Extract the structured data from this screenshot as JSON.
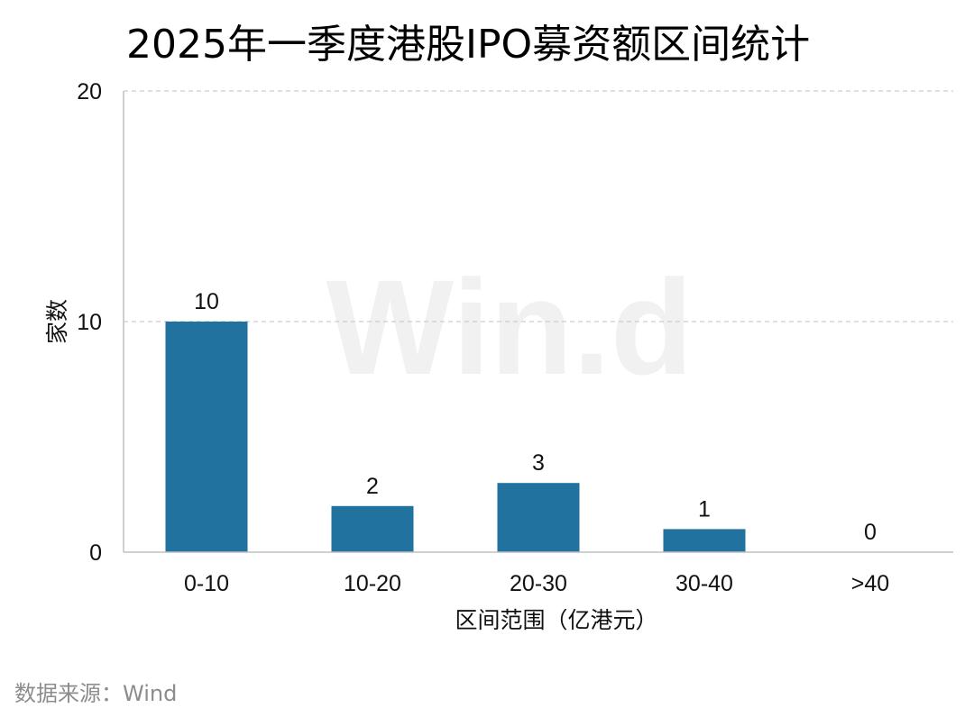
{
  "title": "2025年一季度港股IPO募资额区间统计",
  "source": "数据来源：Wind",
  "watermark": "Win.d",
  "colors": {
    "bar": "#2272a0",
    "grid": "#cccccc",
    "axis": "#bfbfbf",
    "watermark": "#f1f1f1",
    "text": "#111111",
    "source": "#8c8c8c"
  },
  "chart_data": {
    "type": "bar",
    "categories": [
      "0-10",
      "10-20",
      "20-30",
      "30-40",
      ">40"
    ],
    "values": [
      10,
      2,
      3,
      1,
      0
    ],
    "data_labels": [
      "10",
      "2",
      "3",
      "1",
      "0"
    ],
    "xlabel": "区间范围（亿港元）",
    "ylabel": "家数",
    "ylim": [
      0,
      20
    ],
    "yticks": [
      0,
      10,
      20
    ],
    "grid": true,
    "legend": "none"
  }
}
